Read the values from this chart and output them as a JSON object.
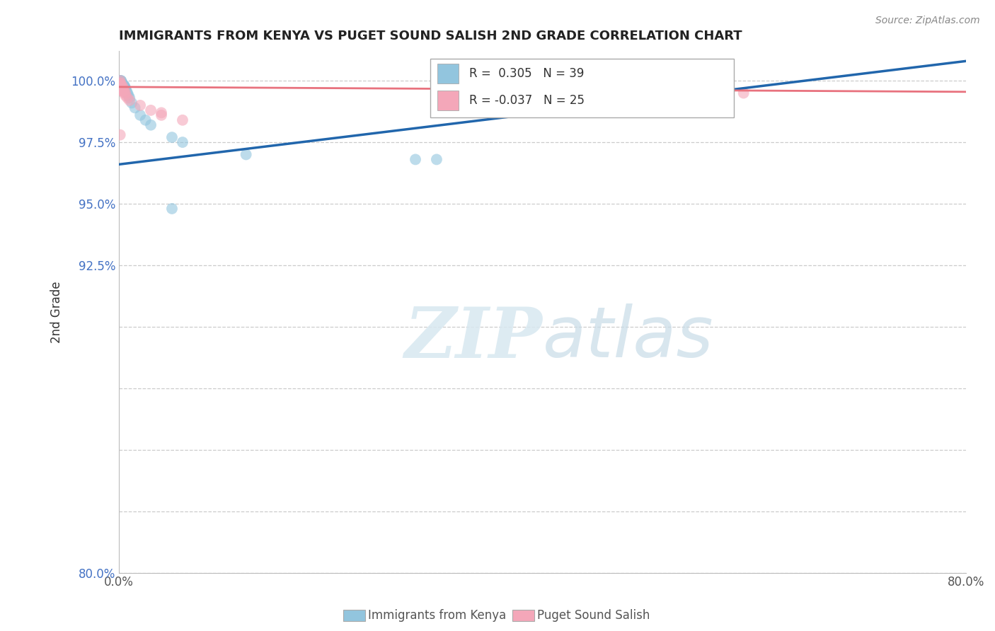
{
  "title": "IMMIGRANTS FROM KENYA VS PUGET SOUND SALISH 2ND GRADE CORRELATION CHART",
  "source": "Source: ZipAtlas.com",
  "xlabel_blue": "Immigrants from Kenya",
  "xlabel_pink": "Puget Sound Salish",
  "ylabel": "2nd Grade",
  "xmin": 0.0,
  "xmax": 0.8,
  "ymin": 0.8,
  "ymax": 1.012,
  "legend_blue_R": "0.305",
  "legend_blue_N": "39",
  "legend_pink_R": "-0.037",
  "legend_pink_N": "25",
  "blue_color": "#92c5de",
  "pink_color": "#f4a7b9",
  "blue_line_color": "#2166ac",
  "pink_line_color": "#e8727e",
  "watermark_zip": "ZIP",
  "watermark_atlas": "atlas",
  "blue_x": [
    0.001,
    0.001,
    0.001,
    0.001,
    0.001,
    0.001,
    0.001,
    0.001,
    0.002,
    0.002,
    0.002,
    0.002,
    0.002,
    0.002,
    0.003,
    0.003,
    0.003,
    0.004,
    0.004,
    0.005,
    0.005,
    0.005,
    0.006,
    0.006,
    0.007,
    0.008,
    0.009,
    0.01,
    0.012,
    0.015,
    0.02,
    0.025,
    0.03,
    0.05,
    0.06,
    0.12,
    0.28,
    0.3,
    0.05
  ],
  "blue_y": [
    0.999,
    0.999,
    1.0,
    1.0,
    1.0,
    0.999,
    0.998,
    0.998,
    0.999,
    1.0,
    1.0,
    0.999,
    0.998,
    0.998,
    0.999,
    0.999,
    0.998,
    0.998,
    0.998,
    0.998,
    0.997,
    0.998,
    0.997,
    0.997,
    0.996,
    0.995,
    0.994,
    0.993,
    0.991,
    0.989,
    0.986,
    0.984,
    0.982,
    0.977,
    0.975,
    0.97,
    0.968,
    0.968,
    0.948
  ],
  "pink_x": [
    0.001,
    0.001,
    0.001,
    0.001,
    0.001,
    0.002,
    0.002,
    0.002,
    0.003,
    0.003,
    0.004,
    0.004,
    0.005,
    0.005,
    0.006,
    0.006,
    0.008,
    0.01,
    0.02,
    0.03,
    0.04,
    0.04,
    0.06,
    0.59,
    0.001
  ],
  "pink_y": [
    0.999,
    0.999,
    1.0,
    0.998,
    0.997,
    0.998,
    0.997,
    0.996,
    0.998,
    0.997,
    0.997,
    0.996,
    0.996,
    0.995,
    0.995,
    0.994,
    0.993,
    0.992,
    0.99,
    0.988,
    0.987,
    0.986,
    0.984,
    0.995,
    0.978
  ],
  "blue_line_x": [
    0.0,
    0.8
  ],
  "blue_line_y": [
    0.966,
    1.008
  ],
  "pink_line_x": [
    0.0,
    0.8
  ],
  "pink_line_y": [
    0.9975,
    0.9955
  ],
  "ytick_positions": [
    0.8,
    0.825,
    0.85,
    0.875,
    0.9,
    0.925,
    0.95,
    0.975,
    1.0
  ],
  "ytick_labels": [
    "80.0%",
    "",
    "",
    "",
    "",
    "92.5%",
    "95.0%",
    "97.5%",
    "100.0%"
  ],
  "xtick_positions": [
    0.0,
    0.1,
    0.2,
    0.3,
    0.4,
    0.5,
    0.6,
    0.7,
    0.8
  ],
  "xtick_labels": [
    "0.0%",
    "",
    "",
    "",
    "",
    "",
    "",
    "",
    "80.0%"
  ]
}
